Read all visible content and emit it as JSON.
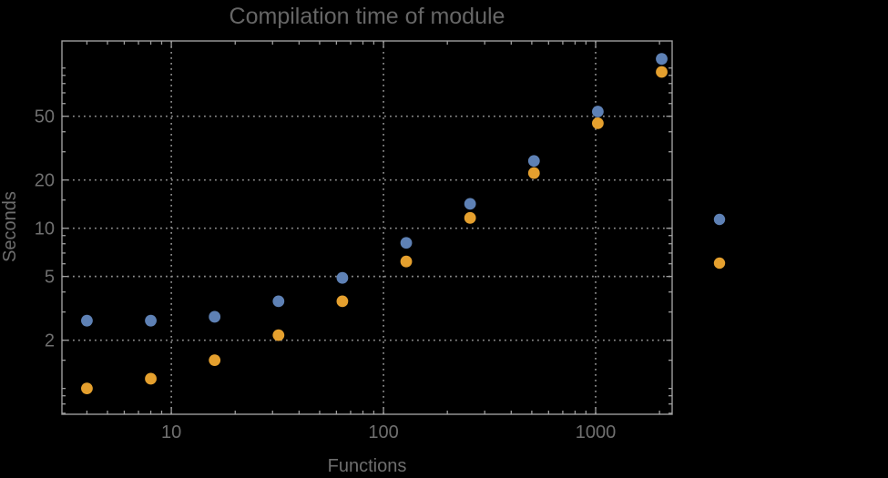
{
  "app": {
    "background_color": "#000000"
  },
  "chart_data": {
    "type": "scatter",
    "title": "Compilation time of module",
    "xlabel": "Functions",
    "ylabel": "Seconds",
    "xscale": "log",
    "yscale": "log",
    "xlim": [
      3.05,
      2294
    ],
    "ylim": [
      0.69,
      147.5
    ],
    "x": [
      4,
      8,
      16,
      32,
      64,
      128,
      256,
      512,
      1024,
      2048
    ],
    "series": [
      {
        "name": "blue-series",
        "color": "#5e81b5",
        "values": [
          2.65,
          2.65,
          2.8,
          3.5,
          4.9,
          8.1,
          14.2,
          26.3,
          53.5,
          114
        ]
      },
      {
        "name": "orange-series",
        "color": "#e5a02e",
        "values": [
          1.0,
          1.15,
          1.5,
          2.15,
          3.5,
          6.2,
          11.6,
          22.1,
          45.2,
          94.5
        ]
      }
    ],
    "x_ticks": {
      "major": [
        10,
        100,
        1000
      ],
      "major_labels": [
        "10",
        "100",
        "1000"
      ],
      "minor": [
        4,
        5,
        6,
        7,
        8,
        9,
        20,
        30,
        40,
        50,
        60,
        70,
        80,
        90,
        200,
        300,
        400,
        500,
        600,
        700,
        800,
        900,
        2000
      ]
    },
    "y_ticks": {
      "major": [
        2,
        5,
        10,
        20,
        50
      ],
      "major_labels": [
        "2",
        "5",
        "10",
        "20",
        "50"
      ],
      "minor": [
        0.7,
        0.8,
        0.9,
        1,
        1.5,
        3,
        4,
        6,
        7,
        8,
        9,
        15,
        30,
        40,
        60,
        70,
        80,
        90,
        100
      ]
    },
    "grid": {
      "x_values": [
        10,
        100,
        1000
      ],
      "y_values": [
        2,
        5,
        10,
        20,
        50
      ],
      "line_style": "dotted",
      "color": "#8d8d8d"
    },
    "legend": {
      "position": "right-outside",
      "markers": [
        {
          "name": "blue-series-marker",
          "color": "#5e81b5",
          "label": ""
        },
        {
          "name": "orange-series-marker",
          "color": "#e5a02e",
          "label": ""
        }
      ]
    },
    "colors": {
      "frame": "#9e9e9e",
      "tick_label": "#6f6f6f",
      "axis_label": "#6e6e6e",
      "title": "#666666",
      "background": "#000000"
    }
  }
}
